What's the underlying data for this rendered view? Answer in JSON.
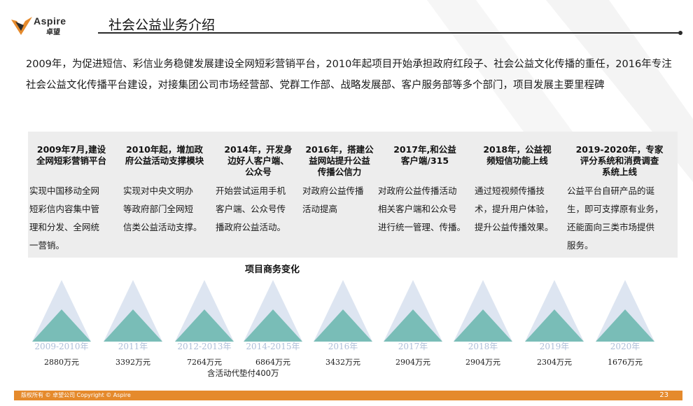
{
  "brand": {
    "name": "Aspire",
    "name_cn": "卓望"
  },
  "title": "社会公益业务介绍",
  "intro": "2009年，为促进短信、彩信业务稳健发展建设全网短彩营销平台，2010年起项目开始承担政府红段子、社会公益文化传播的重任，2016年专注社会公益文化传播平台建设，对接集团公司市场经营部、党群工作部、战略发展部、客户服务部等多个部门，项目发展主要里程碑",
  "milestones": [
    {
      "head": [
        "2009年7月,建设",
        "全网短彩营销平台"
      ],
      "body": [
        "实现中国移动全网",
        "短彩信内容集中管",
        "理和分发、全网统",
        "一营销。"
      ]
    },
    {
      "head": [
        "2010年起，增加政",
        "府公益活动支撑模块"
      ],
      "body": [
        "实现对中央文明办",
        "等政府部门全网短",
        "信类公益活动支撑。"
      ]
    },
    {
      "head": [
        "2014年，开发身",
        "边好人客户端、",
        "公众号"
      ],
      "body": [
        "开始尝试运用手机",
        "客户端、公众号传",
        "播政府公益活动。"
      ]
    },
    {
      "head": [
        "2016年，搭建公",
        "益网站提升公益",
        "传播公信力"
      ],
      "body": [
        "对政府公益传播",
        "活动提高"
      ]
    },
    {
      "head": [
        "2017年,和公益",
        "客户端/315"
      ],
      "body": [
        "对政府公益传播活动",
        "相关客户端和公众号",
        "进行统一管理、传播。"
      ]
    },
    {
      "head": [
        "2018年，公益视",
        "频短信功能上线"
      ],
      "body": [
        "通过短视频传播技",
        "术，提升用户体验，",
        "提升公益传播效果。"
      ]
    },
    {
      "head": [
        "2019-2020年，专家",
        "评分系统和消费调查",
        "系统上线"
      ],
      "body": [
        "公益平台自研产品的诞",
        "生，即可支撑原有业务，",
        "还能面向三类市场提供",
        "服务。"
      ]
    }
  ],
  "business_section": {
    "title": "项目商务变化",
    "years": [
      "2009-2010年",
      "2011年",
      "2012-2013年",
      "2014-2015年",
      "2016年",
      "2017年",
      "2018年",
      "2019年",
      "2020年"
    ],
    "amounts": [
      "2880万元",
      "3392万元",
      "7264万元",
      "6864万元",
      "3432万元",
      "2904万元",
      "2904万元",
      "2304万元",
      "1676万元"
    ],
    "note": "含活动代垫付400万",
    "colors": {
      "outer": "#dde5f1",
      "inner": "#79bdb7"
    }
  },
  "footer": {
    "copyright": "版权所有 © 卓望公司     Copyright © Aspire",
    "page": "23",
    "color": "#e58a2c"
  }
}
